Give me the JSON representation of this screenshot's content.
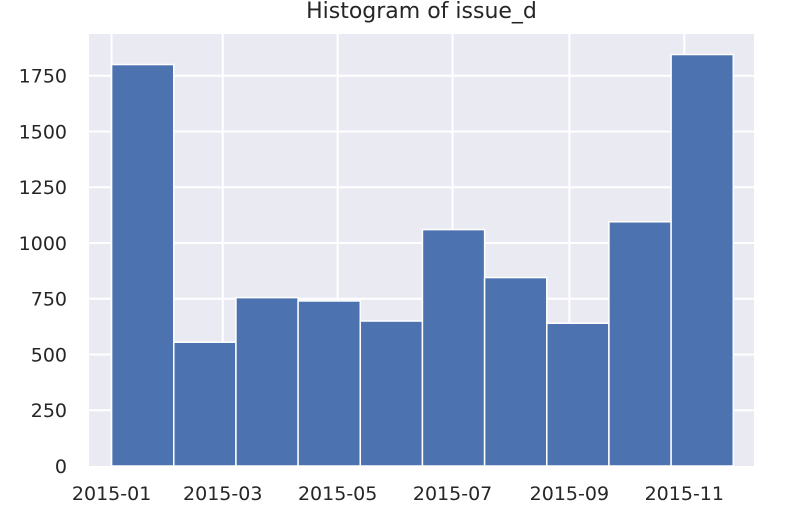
{
  "chart_data": {
    "type": "bar",
    "title": "Histogram of issue_d",
    "xlabel": "",
    "ylabel": "",
    "bins": [
      {
        "start": "2015-01-01",
        "end": "2015-02-03",
        "count": 1800
      },
      {
        "start": "2015-02-03",
        "end": "2015-03-08",
        "count": 555
      },
      {
        "start": "2015-03-08",
        "end": "2015-04-10",
        "count": 755
      },
      {
        "start": "2015-04-10",
        "end": "2015-05-13",
        "count": 740
      },
      {
        "start": "2015-05-13",
        "end": "2015-06-15",
        "count": 650
      },
      {
        "start": "2015-06-15",
        "end": "2015-07-18",
        "count": 1060
      },
      {
        "start": "2015-07-18",
        "end": "2015-08-20",
        "count": 845
      },
      {
        "start": "2015-08-20",
        "end": "2015-09-22",
        "count": 640
      },
      {
        "start": "2015-09-22",
        "end": "2015-10-25",
        "count": 1095
      },
      {
        "start": "2015-10-25",
        "end": "2015-11-27",
        "count": 1845
      }
    ],
    "xticks": [
      {
        "label": "2015-01",
        "date": "2015-01-01"
      },
      {
        "label": "2015-03",
        "date": "2015-03-01"
      },
      {
        "label": "2015-05",
        "date": "2015-05-01"
      },
      {
        "label": "2015-07",
        "date": "2015-07-01"
      },
      {
        "label": "2015-09",
        "date": "2015-09-01"
      },
      {
        "label": "2015-11",
        "date": "2015-11-01"
      }
    ],
    "yticks": [
      0,
      250,
      500,
      750,
      1000,
      1250,
      1500,
      1750
    ],
    "xlim": [
      "2014-12-20",
      "2015-12-08"
    ],
    "ylim": [
      0,
      1937
    ],
    "grid": true,
    "colors": {
      "bar": "#4c72b0",
      "background": "#eaeaf2",
      "grid": "#ffffff",
      "text": "#262626"
    }
  }
}
